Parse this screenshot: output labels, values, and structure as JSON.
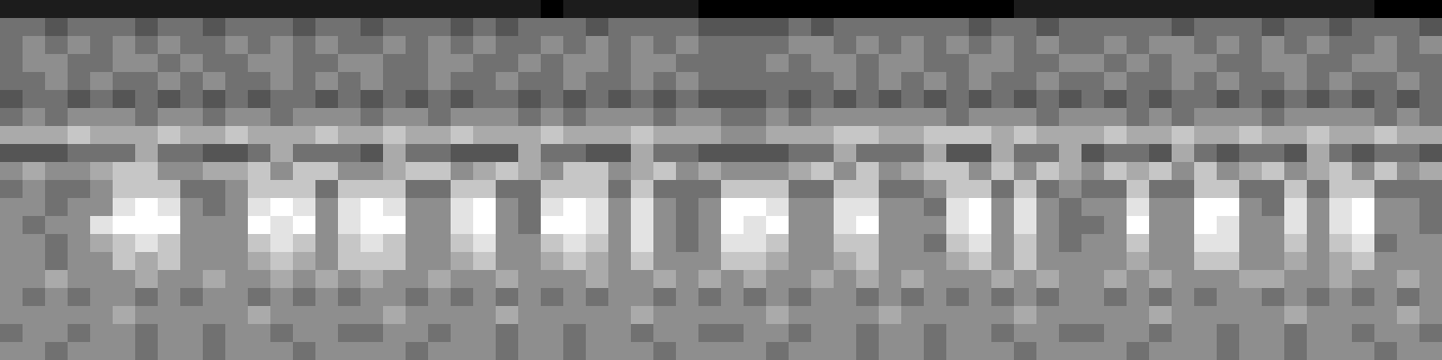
{
  "chart_data": {
    "type": "heatmap",
    "tick_labels": false,
    "zlim": [
      0,
      9
    ],
    "cells": [
      [
        1,
        1,
        1,
        1,
        1,
        1,
        1,
        1,
        1,
        1,
        1,
        1,
        1,
        1,
        1,
        1,
        1,
        1,
        1,
        1,
        1,
        1,
        1,
        1,
        0,
        1,
        1,
        1,
        1,
        1,
        1,
        0,
        0,
        0,
        0,
        0,
        0,
        0,
        0,
        0,
        0,
        0,
        0,
        0,
        0,
        1,
        1,
        1,
        1,
        1,
        1,
        1,
        1,
        1,
        1,
        1,
        1,
        1,
        1,
        1,
        1,
        0,
        0,
        0
      ],
      [
        4,
        4,
        3,
        4,
        4,
        4,
        3,
        4,
        4,
        3,
        4,
        4,
        4,
        3,
        4,
        4,
        3,
        4,
        4,
        4,
        3,
        4,
        3,
        4,
        4,
        4,
        3,
        4,
        4,
        4,
        4,
        3,
        3,
        3,
        3,
        4,
        3,
        4,
        4,
        4,
        4,
        4,
        4,
        3,
        4,
        4,
        3,
        4,
        4,
        4,
        4,
        4,
        3,
        4,
        4,
        4,
        3,
        4,
        4,
        3,
        4,
        4,
        4,
        3
      ],
      [
        4,
        5,
        4,
        5,
        4,
        5,
        4,
        5,
        4,
        4,
        5,
        4,
        5,
        4,
        5,
        4,
        4,
        5,
        4,
        5,
        4,
        5,
        4,
        4,
        5,
        4,
        5,
        4,
        5,
        4,
        5,
        4,
        4,
        4,
        4,
        5,
        5,
        4,
        5,
        4,
        5,
        4,
        5,
        4,
        5,
        4,
        5,
        4,
        4,
        5,
        4,
        5,
        5,
        4,
        5,
        4,
        5,
        4,
        5,
        4,
        4,
        5,
        4,
        5
      ],
      [
        4,
        5,
        5,
        4,
        4,
        5,
        5,
        4,
        5,
        4,
        4,
        5,
        5,
        4,
        4,
        5,
        5,
        4,
        4,
        5,
        5,
        4,
        4,
        5,
        4,
        5,
        5,
        4,
        5,
        5,
        4,
        4,
        4,
        4,
        5,
        4,
        5,
        5,
        4,
        5,
        5,
        4,
        4,
        5,
        5,
        4,
        4,
        5,
        5,
        4,
        5,
        4,
        5,
        5,
        4,
        4,
        5,
        5,
        4,
        4,
        5,
        5,
        4,
        4
      ],
      [
        4,
        4,
        5,
        4,
        5,
        4,
        4,
        5,
        4,
        5,
        4,
        4,
        5,
        4,
        5,
        4,
        5,
        4,
        4,
        5,
        4,
        4,
        5,
        4,
        4,
        5,
        4,
        4,
        5,
        4,
        5,
        4,
        4,
        4,
        4,
        4,
        4,
        5,
        4,
        5,
        4,
        5,
        4,
        5,
        4,
        4,
        5,
        4,
        4,
        5,
        4,
        4,
        5,
        4,
        5,
        4,
        4,
        5,
        4,
        5,
        4,
        4,
        5,
        4
      ],
      [
        3,
        4,
        4,
        3,
        4,
        3,
        4,
        3,
        4,
        3,
        4,
        3,
        4,
        4,
        3,
        4,
        3,
        4,
        3,
        4,
        3,
        4,
        4,
        3,
        4,
        3,
        4,
        3,
        4,
        3,
        4,
        3,
        3,
        3,
        4,
        3,
        4,
        3,
        4,
        3,
        4,
        3,
        4,
        3,
        4,
        3,
        4,
        3,
        4,
        3,
        4,
        3,
        4,
        4,
        3,
        4,
        3,
        4,
        3,
        4,
        3,
        4,
        3,
        4
      ],
      [
        4,
        5,
        4,
        5,
        5,
        5,
        4,
        5,
        5,
        4,
        5,
        5,
        4,
        5,
        5,
        5,
        4,
        5,
        5,
        4,
        5,
        5,
        5,
        4,
        5,
        4,
        5,
        5,
        5,
        4,
        5,
        5,
        4,
        4,
        5,
        4,
        5,
        5,
        5,
        5,
        5,
        5,
        4,
        5,
        5,
        5,
        4,
        5,
        5,
        5,
        4,
        5,
        4,
        5,
        5,
        5,
        4,
        5,
        5,
        5,
        5,
        4,
        5,
        4
      ],
      [
        6,
        6,
        6,
        7,
        6,
        6,
        6,
        7,
        6,
        6,
        7,
        6,
        6,
        6,
        7,
        6,
        6,
        7,
        6,
        6,
        7,
        6,
        6,
        6,
        7,
        6,
        6,
        6,
        7,
        6,
        6,
        6,
        5,
        5,
        6,
        6,
        6,
        7,
        7,
        6,
        6,
        7,
        7,
        7,
        6,
        7,
        6,
        6,
        6,
        7,
        6,
        6,
        7,
        6,
        6,
        7,
        6,
        6,
        7,
        6,
        6,
        7,
        6,
        6
      ],
      [
        3,
        3,
        3,
        4,
        4,
        4,
        6,
        4,
        4,
        3,
        3,
        4,
        6,
        4,
        4,
        4,
        3,
        6,
        4,
        4,
        3,
        3,
        3,
        6,
        4,
        4,
        3,
        3,
        6,
        4,
        4,
        3,
        3,
        3,
        3,
        4,
        4,
        6,
        4,
        4,
        4,
        6,
        3,
        3,
        6,
        4,
        4,
        6,
        3,
        4,
        4,
        3,
        6,
        4,
        3,
        4,
        4,
        3,
        6,
        4,
        3,
        4,
        4,
        3
      ],
      [
        5,
        6,
        5,
        5,
        6,
        7,
        7,
        5,
        5,
        6,
        6,
        7,
        5,
        7,
        7,
        5,
        5,
        6,
        7,
        7,
        5,
        6,
        7,
        6,
        5,
        7,
        7,
        5,
        6,
        7,
        5,
        6,
        5,
        5,
        5,
        6,
        7,
        5,
        7,
        5,
        6,
        7,
        7,
        5,
        7,
        5,
        7,
        6,
        5,
        7,
        6,
        7,
        5,
        7,
        5,
        6,
        7,
        5,
        6,
        7,
        5,
        7,
        5,
        6
      ],
      [
        4,
        5,
        4,
        4,
        5,
        7,
        7,
        7,
        4,
        4,
        5,
        7,
        7,
        7,
        4,
        7,
        7,
        7,
        4,
        4,
        7,
        7,
        4,
        4,
        7,
        7,
        7,
        4,
        7,
        4,
        4,
        4,
        7,
        7,
        7,
        4,
        4,
        7,
        7,
        4,
        4,
        5,
        7,
        7,
        4,
        7,
        4,
        5,
        4,
        4,
        7,
        4,
        4,
        7,
        7,
        4,
        4,
        7,
        4,
        7,
        7,
        4,
        4,
        4
      ],
      [
        5,
        5,
        4,
        5,
        5,
        8,
        9,
        8,
        5,
        4,
        5,
        8,
        9,
        8,
        5,
        8,
        9,
        8,
        5,
        5,
        8,
        9,
        5,
        4,
        8,
        9,
        8,
        5,
        8,
        5,
        4,
        5,
        9,
        9,
        8,
        5,
        5,
        8,
        8,
        5,
        5,
        4,
        8,
        9,
        5,
        8,
        5,
        4,
        5,
        5,
        8,
        5,
        5,
        9,
        9,
        5,
        4,
        8,
        5,
        8,
        9,
        5,
        5,
        4
      ],
      [
        5,
        4,
        5,
        5,
        8,
        9,
        9,
        9,
        5,
        5,
        5,
        9,
        8,
        9,
        5,
        8,
        9,
        9,
        5,
        5,
        8,
        9,
        5,
        4,
        9,
        9,
        8,
        5,
        8,
        5,
        4,
        5,
        9,
        8,
        9,
        5,
        5,
        8,
        9,
        5,
        5,
        5,
        8,
        9,
        5,
        8,
        5,
        4,
        4,
        5,
        9,
        5,
        5,
        9,
        8,
        5,
        5,
        8,
        5,
        8,
        9,
        5,
        5,
        4
      ],
      [
        5,
        5,
        4,
        5,
        6,
        7,
        8,
        7,
        5,
        5,
        5,
        7,
        8,
        7,
        5,
        7,
        8,
        7,
        5,
        5,
        7,
        8,
        5,
        5,
        7,
        8,
        7,
        5,
        8,
        5,
        4,
        5,
        8,
        8,
        7,
        5,
        5,
        7,
        7,
        5,
        5,
        4,
        7,
        8,
        5,
        7,
        5,
        4,
        5,
        5,
        7,
        5,
        5,
        8,
        8,
        5,
        5,
        7,
        5,
        7,
        8,
        4,
        5,
        5
      ],
      [
        5,
        5,
        4,
        5,
        5,
        7,
        6,
        7,
        5,
        5,
        5,
        6,
        7,
        6,
        5,
        7,
        7,
        7,
        5,
        5,
        6,
        7,
        5,
        5,
        6,
        7,
        6,
        5,
        7,
        5,
        5,
        5,
        7,
        7,
        6,
        5,
        5,
        6,
        7,
        5,
        5,
        5,
        6,
        7,
        5,
        7,
        5,
        5,
        5,
        5,
        6,
        5,
        5,
        7,
        7,
        5,
        5,
        6,
        5,
        6,
        7,
        5,
        5,
        5
      ],
      [
        5,
        5,
        6,
        5,
        5,
        5,
        6,
        5,
        5,
        6,
        5,
        5,
        6,
        5,
        6,
        5,
        6,
        5,
        5,
        6,
        5,
        5,
        6,
        5,
        5,
        5,
        6,
        5,
        5,
        6,
        5,
        6,
        5,
        6,
        5,
        5,
        6,
        5,
        6,
        5,
        6,
        5,
        5,
        5,
        6,
        5,
        6,
        5,
        5,
        6,
        5,
        6,
        5,
        5,
        5,
        6,
        6,
        5,
        5,
        6,
        5,
        5,
        6,
        5
      ],
      [
        5,
        4,
        5,
        4,
        5,
        5,
        4,
        5,
        4,
        5,
        5,
        4,
        5,
        4,
        5,
        4,
        5,
        5,
        4,
        5,
        4,
        5,
        4,
        5,
        4,
        5,
        4,
        5,
        5,
        4,
        5,
        4,
        5,
        4,
        5,
        4,
        5,
        5,
        4,
        5,
        4,
        5,
        4,
        5,
        4,
        5,
        4,
        5,
        5,
        4,
        5,
        4,
        5,
        4,
        5,
        5,
        4,
        5,
        4,
        5,
        4,
        5,
        4,
        5
      ],
      [
        5,
        5,
        5,
        5,
        5,
        6,
        5,
        5,
        5,
        5,
        5,
        6,
        5,
        5,
        5,
        5,
        5,
        6,
        5,
        5,
        5,
        5,
        6,
        5,
        5,
        5,
        5,
        5,
        6,
        5,
        5,
        5,
        5,
        5,
        6,
        5,
        5,
        5,
        5,
        6,
        5,
        5,
        5,
        5,
        5,
        6,
        5,
        5,
        5,
        5,
        5,
        6,
        5,
        5,
        5,
        5,
        5,
        6,
        5,
        5,
        5,
        5,
        6,
        5
      ],
      [
        4,
        5,
        5,
        4,
        5,
        5,
        4,
        5,
        5,
        4,
        5,
        5,
        4,
        5,
        5,
        4,
        4,
        5,
        5,
        4,
        5,
        5,
        4,
        5,
        5,
        4,
        5,
        5,
        4,
        5,
        5,
        4,
        4,
        5,
        5,
        4,
        5,
        5,
        4,
        5,
        5,
        4,
        5,
        5,
        4,
        5,
        5,
        4,
        4,
        5,
        5,
        4,
        5,
        5,
        4,
        5,
        5,
        4,
        5,
        5,
        4,
        5,
        5,
        4
      ],
      [
        5,
        5,
        4,
        5,
        5,
        5,
        4,
        5,
        5,
        4,
        5,
        5,
        5,
        4,
        5,
        5,
        5,
        5,
        4,
        5,
        5,
        5,
        4,
        5,
        5,
        4,
        5,
        5,
        5,
        4,
        5,
        5,
        5,
        5,
        4,
        5,
        5,
        5,
        4,
        5,
        5,
        4,
        5,
        5,
        5,
        4,
        5,
        5,
        5,
        5,
        4,
        5,
        5,
        5,
        4,
        5,
        5,
        4,
        5,
        5,
        5,
        4,
        5,
        5
      ]
    ]
  }
}
